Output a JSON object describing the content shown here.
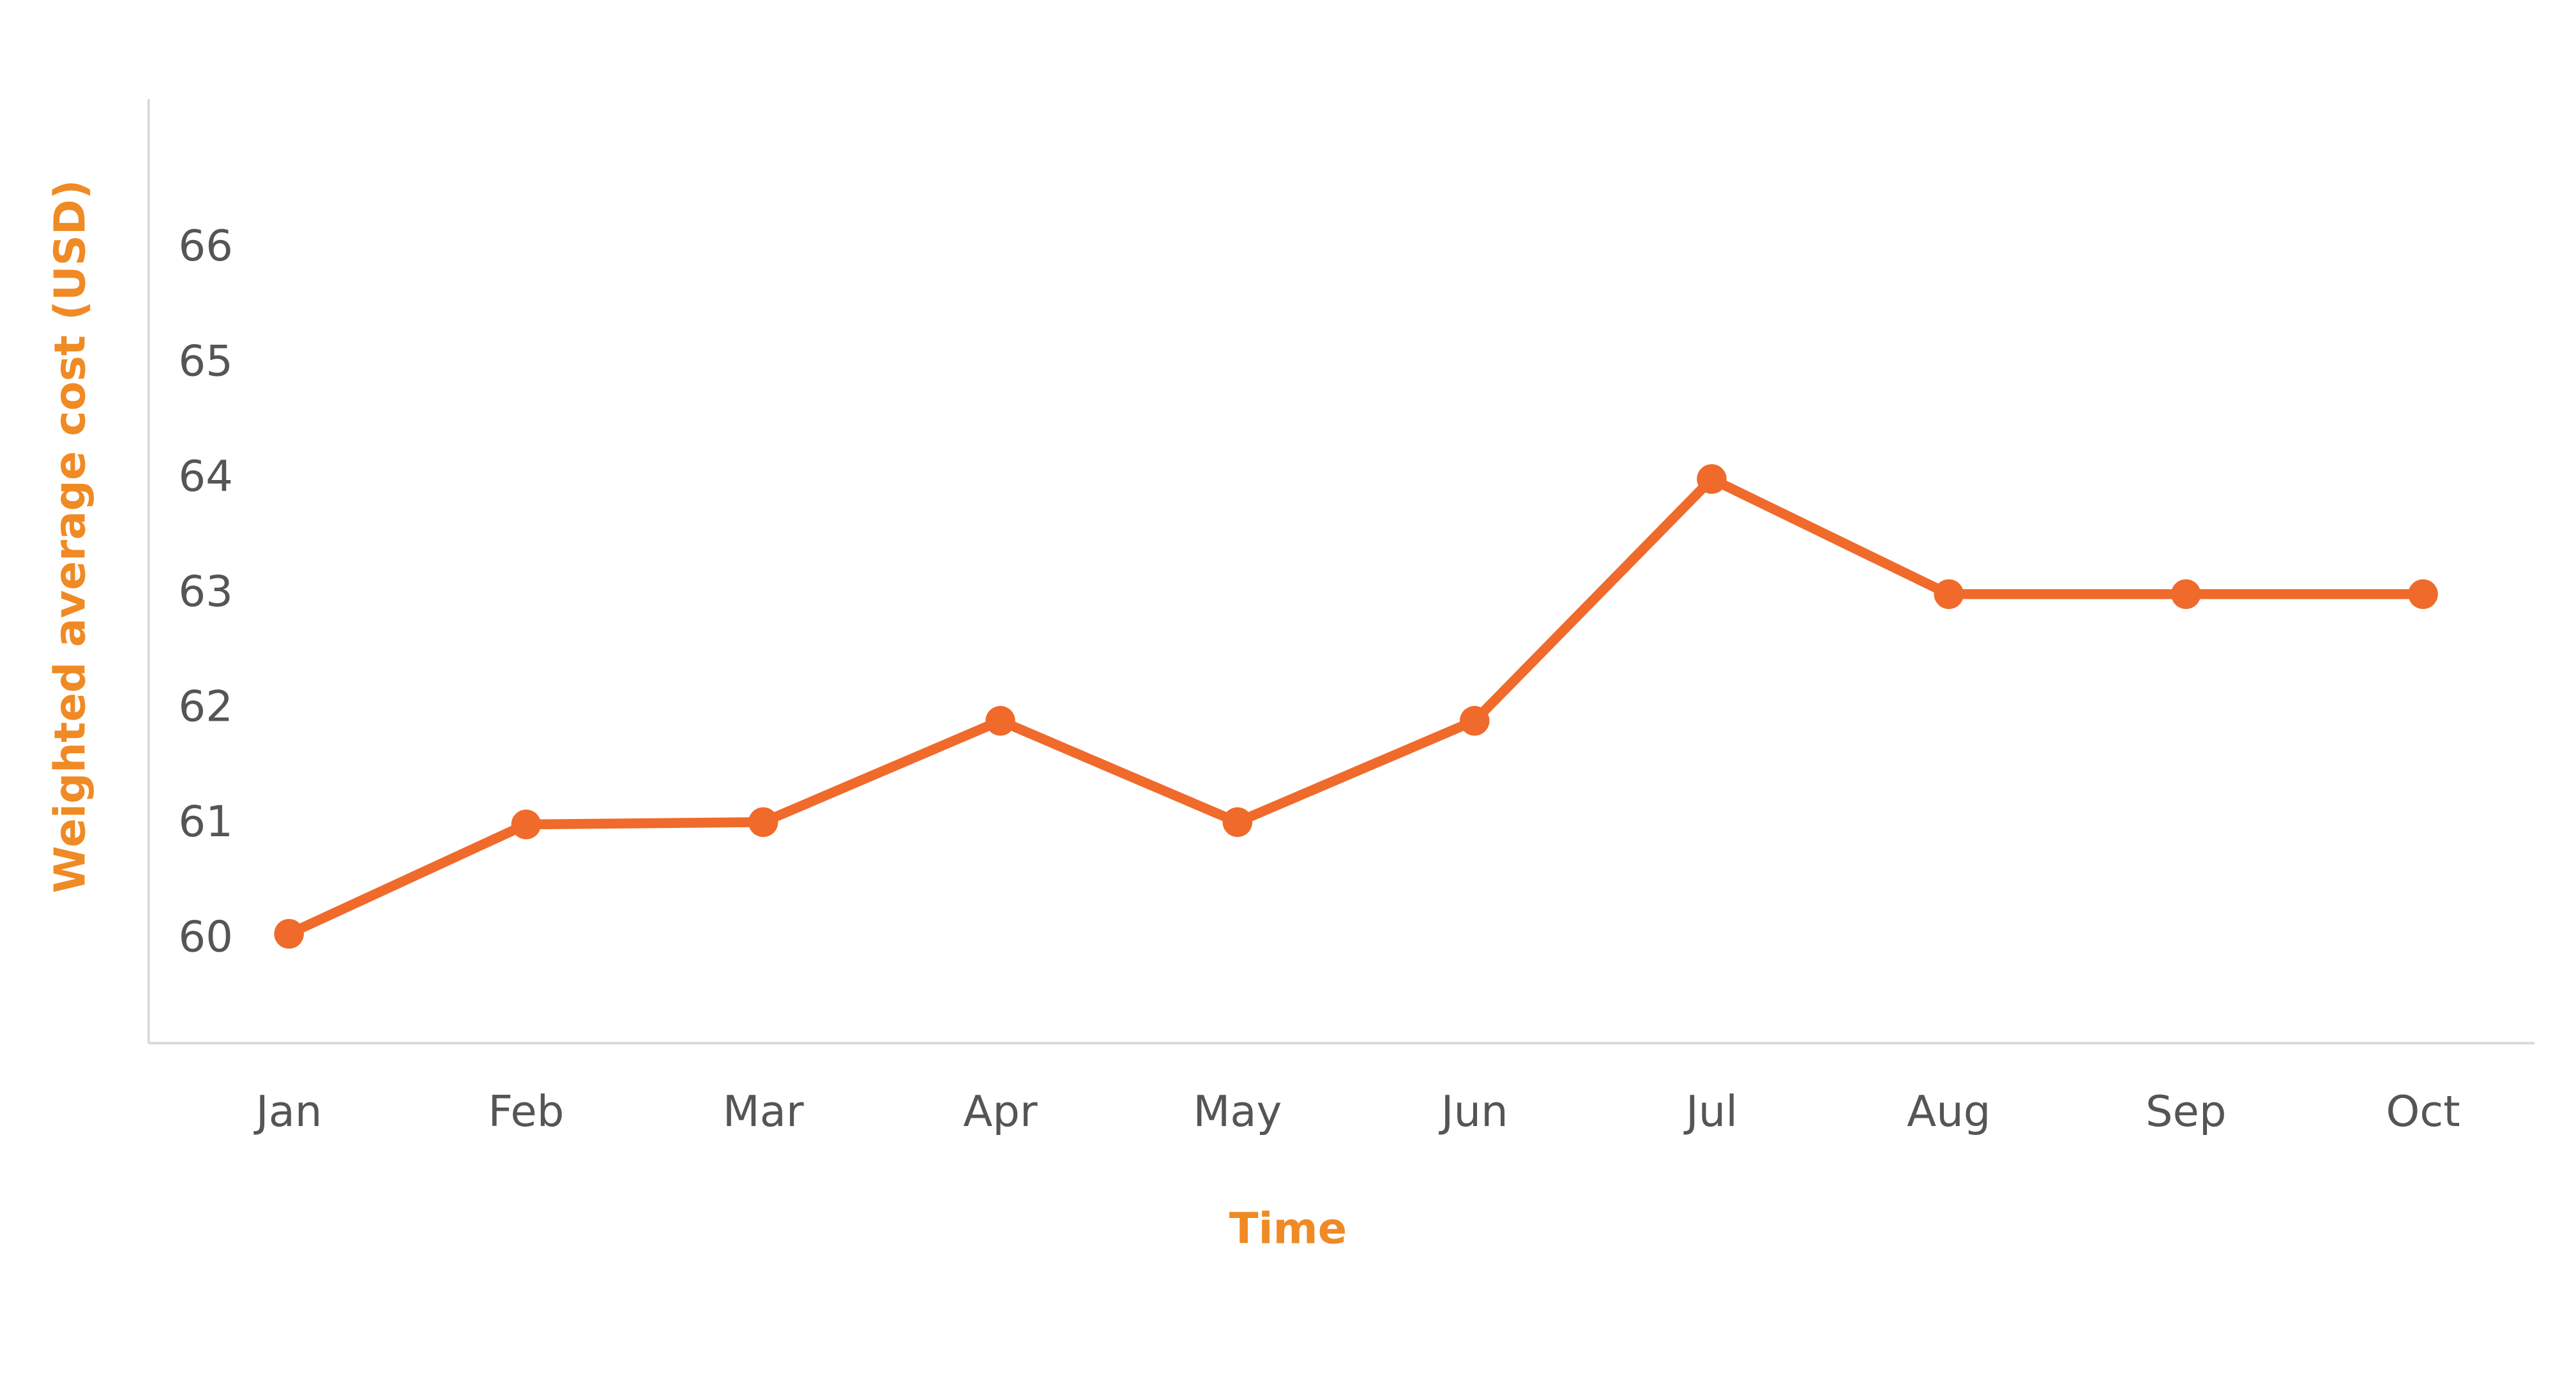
{
  "chart_data": {
    "type": "line",
    "x_label": "Time",
    "y_label": "Weighted average cost (USD)",
    "categories": [
      "Jan",
      "Feb",
      "Mar",
      "Apr",
      "May",
      "Jun",
      "Jul",
      "Aug",
      "Sep",
      "Oct"
    ],
    "series": [
      {
        "name": "Weighted average cost",
        "color": "#ef6a2b",
        "values": [
          60.05,
          61,
          61.02,
          61.9,
          61.02,
          61.9,
          64,
          63,
          63,
          63
        ]
      }
    ],
    "ylim": [
      59.1,
      67.3
    ],
    "yticks": [
      60,
      61,
      62,
      63,
      64,
      65,
      66
    ],
    "grid": false,
    "axis_label_color": "#f08a24"
  }
}
